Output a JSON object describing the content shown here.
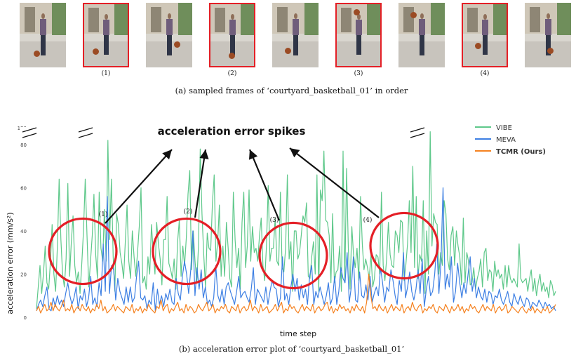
{
  "figure": {
    "caption_a": "(a) sampled frames of ‘courtyard_basketball_01’ in order",
    "caption_b": "(b) acceleration error plot of ‘courtyard_basketball_01’",
    "frames": [
      {
        "label": "",
        "highlighted": false
      },
      {
        "label": "(1)",
        "highlighted": true
      },
      {
        "label": "",
        "highlighted": false
      },
      {
        "label": "(2)",
        "highlighted": true
      },
      {
        "label": "",
        "highlighted": false
      },
      {
        "label": "(3)",
        "highlighted": true
      },
      {
        "label": "",
        "highlighted": false
      },
      {
        "label": "(4)",
        "highlighted": true
      },
      {
        "label": "",
        "highlighted": false
      }
    ]
  },
  "chart_data": {
    "type": "line",
    "title": "",
    "xlabel": "time step",
    "ylabel": "acceleration error (mm/s²)",
    "ylim": [
      0,
      80
    ],
    "y_broken_ticks": [
      "120"
    ],
    "yticks": [
      0,
      20,
      40,
      60,
      80
    ],
    "grid": false,
    "legend_position": "top-right",
    "annotation": "acceleration error spikes",
    "spike_regions": [
      {
        "label": "(1)",
        "x": 55
      },
      {
        "label": "(2)",
        "x": 180
      },
      {
        "label": "(3)",
        "x": 320
      },
      {
        "label": "(4)",
        "x": 470
      }
    ],
    "series": [
      {
        "name": "VIBE",
        "color": "#5ec88a",
        "values": [
          4,
          14,
          24,
          11,
          20,
          33,
          16,
          13,
          26,
          43,
          20,
          12,
          33,
          64,
          36,
          20,
          14,
          27,
          62,
          19,
          35,
          47,
          24,
          16,
          21,
          11,
          25,
          40,
          64,
          38,
          14,
          26,
          38,
          57,
          29,
          18,
          58,
          32,
          26,
          50,
          26,
          82,
          36,
          64,
          28,
          12,
          48,
          43,
          30,
          25,
          18,
          35,
          52,
          26,
          18,
          40,
          28,
          19,
          30,
          42,
          60,
          16,
          19,
          13,
          28,
          20,
          43,
          30,
          20,
          44,
          34,
          27,
          15,
          36,
          36,
          56,
          25,
          22,
          18,
          27,
          13,
          35,
          45,
          19,
          33,
          24,
          37,
          57,
          68,
          22,
          40,
          26,
          16,
          33,
          78,
          48,
          29,
          14,
          39,
          32,
          31,
          53,
          66,
          26,
          35,
          52,
          19,
          33,
          19,
          44,
          32,
          18,
          14,
          58,
          36,
          23,
          32,
          13,
          44,
          58,
          23,
          33,
          59,
          26,
          42,
          30,
          32,
          26,
          38,
          46,
          24,
          17,
          33,
          61,
          26,
          32,
          32,
          46,
          26,
          24,
          58,
          23,
          21,
          32,
          66,
          27,
          35,
          12,
          40,
          40,
          27,
          30,
          38,
          47,
          44,
          53,
          19,
          18,
          28,
          35,
          20,
          66,
          12,
          59,
          54,
          77,
          45,
          44,
          38,
          16,
          48,
          16,
          21,
          22,
          33,
          12,
          77,
          16,
          69,
          32,
          13,
          42,
          29,
          23,
          32,
          17,
          56,
          34,
          22,
          27,
          23,
          18,
          29,
          14,
          18,
          29,
          28,
          20,
          58,
          24,
          17,
          27,
          44,
          29,
          24,
          23,
          40,
          38,
          30,
          45,
          44,
          17,
          24,
          34,
          54,
          30,
          70,
          23,
          56,
          18,
          29,
          26,
          54,
          11,
          40,
          20,
          86,
          33,
          48,
          44,
          43,
          20,
          30,
          24,
          54,
          48,
          27,
          22,
          38,
          42,
          24,
          40,
          33,
          28,
          15,
          46,
          16,
          30,
          26,
          15,
          16,
          23,
          13,
          18,
          21,
          27,
          14,
          30,
          32,
          17,
          22,
          21,
          12,
          26,
          19,
          22,
          18,
          20,
          13,
          24,
          14,
          24,
          18,
          16,
          18,
          16,
          14,
          34,
          18,
          16,
          17,
          18,
          12,
          18,
          22,
          12,
          18,
          10,
          16,
          20,
          12,
          16,
          12,
          14,
          9,
          17,
          15,
          10,
          12
        ]
      },
      {
        "name": "MEVA",
        "color": "#3d7fe3",
        "values": [
          3,
          6,
          8,
          5,
          10,
          14,
          4,
          3,
          9,
          5,
          10,
          6,
          8,
          5,
          11,
          16,
          10,
          6,
          9,
          14,
          4,
          10,
          8,
          13,
          5,
          9,
          19,
          6,
          9,
          5,
          16,
          10,
          34,
          12,
          56,
          11,
          24,
          22,
          8,
          18,
          12,
          9,
          6,
          14,
          7,
          14,
          7,
          9,
          19,
          26,
          9,
          8,
          10,
          4,
          8,
          6,
          16,
          3,
          13,
          6,
          10,
          5,
          11,
          8,
          13,
          7,
          6,
          18,
          11,
          8,
          19,
          26,
          20,
          11,
          22,
          40,
          10,
          23,
          13,
          22,
          9,
          14,
          6,
          8,
          5,
          9,
          24,
          10,
          7,
          13,
          6,
          14,
          16,
          12,
          9,
          6,
          12,
          19,
          9,
          11,
          12,
          9,
          7,
          13,
          23,
          6,
          13,
          11,
          9,
          7,
          14,
          6,
          12,
          17,
          14,
          13,
          5,
          9,
          28,
          8,
          11,
          6,
          14,
          20,
          12,
          18,
          8,
          15,
          9,
          13,
          6,
          19,
          24,
          6,
          12,
          9,
          14,
          10,
          6,
          10,
          16,
          6,
          9,
          19,
          6,
          12,
          23,
          18,
          16,
          30,
          7,
          14,
          28,
          8,
          7,
          21,
          10,
          9,
          15,
          8,
          19,
          7,
          11,
          14,
          10,
          23,
          16,
          7,
          14,
          12,
          22,
          17,
          10,
          6,
          17,
          12,
          30,
          9,
          14,
          21,
          12,
          8,
          13,
          22,
          11,
          27,
          5,
          13,
          19,
          10,
          12,
          20,
          34,
          11,
          25,
          60,
          13,
          20,
          14,
          28,
          7,
          12,
          25,
          16,
          9,
          16,
          11,
          20,
          28,
          12,
          18,
          9,
          14,
          10,
          8,
          13,
          7,
          12,
          11,
          6,
          10,
          9,
          13,
          8,
          6,
          9,
          12,
          7,
          5,
          11,
          8,
          6,
          10,
          7,
          5,
          9,
          8,
          4,
          7,
          6,
          5,
          8,
          6,
          4,
          7,
          5,
          6,
          4,
          5,
          3
        ]
      },
      {
        "name": "TCMR (Ours)",
        "color": "#f58220",
        "values": [
          3,
          5,
          2,
          4,
          6,
          3,
          4,
          7,
          3,
          6,
          4,
          3,
          5,
          8,
          3,
          4,
          3,
          6,
          2,
          4,
          5,
          3,
          6,
          4,
          3,
          5,
          2,
          4,
          3,
          6,
          4,
          8,
          3,
          5,
          2,
          3,
          4,
          6,
          3,
          5,
          4,
          3,
          2,
          5,
          4,
          3,
          6,
          2,
          4,
          3,
          5,
          2,
          4,
          3,
          6,
          4,
          3,
          2,
          5,
          4,
          8,
          3,
          5,
          6,
          2,
          4,
          3,
          5,
          7,
          3,
          4,
          2,
          6,
          3,
          5,
          4,
          2,
          3,
          6,
          4,
          3,
          5,
          7,
          3,
          4,
          6,
          2,
          4,
          3,
          5,
          4,
          6,
          3,
          2,
          5,
          4,
          3,
          6,
          2,
          4,
          5,
          3,
          4,
          8,
          3,
          5,
          4,
          2,
          6,
          3,
          4,
          5,
          2,
          3,
          4,
          6,
          3,
          5,
          7,
          2,
          4,
          3,
          6,
          4,
          5,
          3,
          2,
          4,
          6,
          3,
          5,
          4,
          3,
          6,
          2,
          4,
          5,
          3,
          4,
          6,
          7,
          3,
          5,
          2,
          4,
          3,
          6,
          4,
          5,
          3,
          4,
          2,
          5,
          3,
          6,
          4,
          3,
          5,
          2,
          7,
          20,
          10,
          4,
          5,
          3,
          6,
          4,
          3,
          5,
          2,
          4,
          6,
          3,
          5,
          4,
          3,
          6,
          2,
          4,
          5,
          3,
          7,
          4,
          3,
          5,
          6,
          2,
          4,
          3,
          5,
          4,
          6,
          3,
          2,
          5,
          4,
          3,
          6,
          4,
          2,
          5,
          3,
          4,
          6,
          3,
          5,
          2,
          4,
          3,
          6,
          4,
          5,
          3,
          2,
          4,
          6,
          3,
          5,
          4,
          3,
          6,
          2,
          4,
          5,
          3,
          4,
          6,
          2,
          3,
          5,
          4,
          3,
          2,
          4,
          5,
          3,
          2,
          4,
          3,
          5,
          2,
          4,
          3,
          2,
          4,
          3,
          5,
          2,
          3,
          4,
          6
        ]
      }
    ]
  }
}
